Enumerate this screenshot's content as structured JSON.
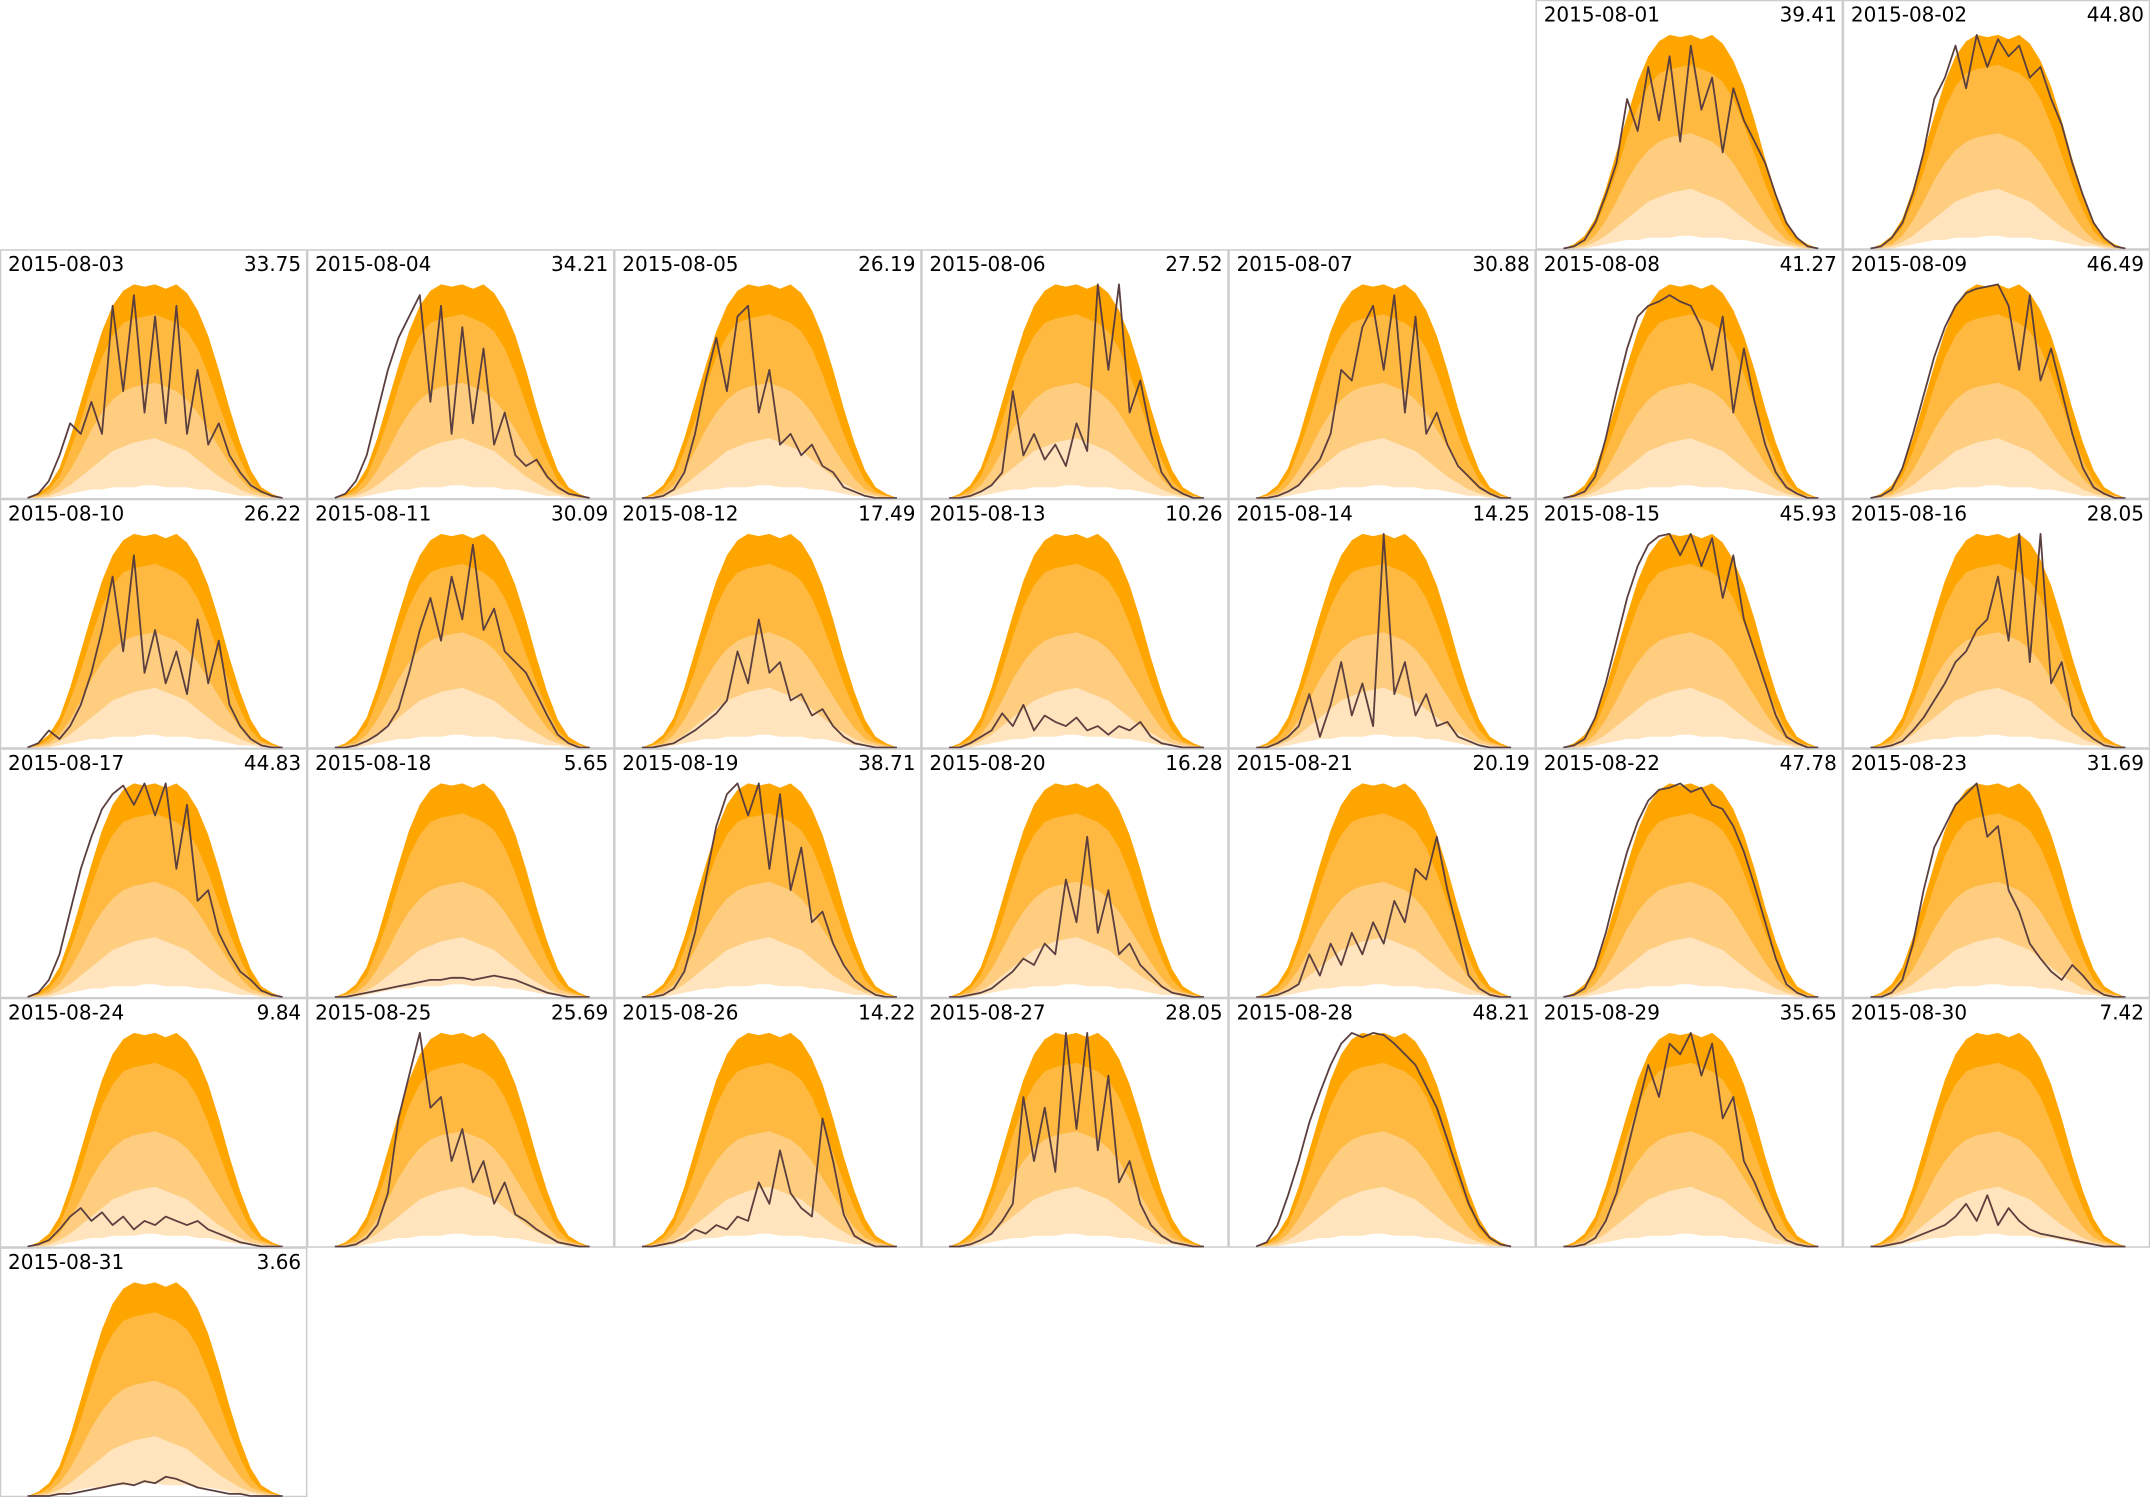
{
  "chart_data": {
    "type": "calendar-area",
    "ylim": [
      0,
      100
    ],
    "line_color": "#5b3f3f",
    "bands": [
      {
        "color": "#ffa500",
        "values": [
          0,
          2,
          6,
          14,
          28,
          45,
          62,
          78,
          90,
          97,
          100,
          99,
          100,
          98,
          100,
          96,
          88,
          76,
          60,
          42,
          26,
          13,
          5,
          2,
          0
        ]
      },
      {
        "color": "#ffb940",
        "values": [
          0,
          1,
          4,
          10,
          22,
          36,
          52,
          66,
          76,
          82,
          84,
          85,
          86,
          84,
          82,
          78,
          70,
          58,
          44,
          30,
          18,
          8,
          3,
          1,
          0
        ]
      },
      {
        "color": "#ffcd80",
        "values": [
          0,
          1,
          2,
          6,
          13,
          22,
          32,
          40,
          46,
          50,
          52,
          53,
          54,
          52,
          50,
          46,
          40,
          32,
          24,
          16,
          9,
          4,
          2,
          1,
          0
        ]
      },
      {
        "color": "#ffe4bd",
        "values": [
          0,
          0,
          1,
          3,
          6,
          10,
          14,
          18,
          22,
          24,
          26,
          27,
          28,
          26,
          24,
          22,
          18,
          14,
          10,
          7,
          4,
          2,
          1,
          0,
          0
        ]
      },
      {
        "color": "#ffffff",
        "values": [
          0,
          0,
          0,
          1,
          2,
          3,
          4,
          4,
          5,
          5,
          5,
          6,
          6,
          5,
          5,
          5,
          4,
          4,
          3,
          2,
          1,
          1,
          0,
          0,
          0
        ]
      }
    ],
    "dates": [
      "2015-08-01",
      "2015-08-02",
      "2015-08-03",
      "2015-08-04",
      "2015-08-05",
      "2015-08-06",
      "2015-08-07",
      "2015-08-08",
      "2015-08-09",
      "2015-08-10",
      "2015-08-11",
      "2015-08-12",
      "2015-08-13",
      "2015-08-14",
      "2015-08-15",
      "2015-08-16",
      "2015-08-17",
      "2015-08-18",
      "2015-08-19",
      "2015-08-20",
      "2015-08-21",
      "2015-08-22",
      "2015-08-23",
      "2015-08-24",
      "2015-08-25",
      "2015-08-26",
      "2015-08-27",
      "2015-08-28",
      "2015-08-29",
      "2015-08-30",
      "2015-08-31"
    ],
    "values": [
      39.41,
      44.8,
      33.75,
      34.21,
      26.19,
      27.52,
      30.88,
      41.27,
      46.49,
      26.22,
      30.09,
      17.49,
      10.26,
      14.25,
      45.93,
      28.05,
      44.83,
      5.65,
      38.71,
      16.28,
      20.19,
      47.78,
      31.69,
      9.84,
      25.69,
      14.22,
      28.05,
      48.21,
      35.65,
      7.42,
      3.66
    ],
    "value_labels": [
      "39.41",
      "44.80",
      "33.75",
      "34.21",
      "26.19",
      "27.52",
      "30.88",
      "41.27",
      "46.49",
      "26.22",
      "30.09",
      "17.49",
      "10.26",
      "14.25",
      "45.93",
      "28.05",
      "44.83",
      "5.65",
      "38.71",
      "16.28",
      "20.19",
      "47.78",
      "31.69",
      "9.84",
      "25.69",
      "14.22",
      "28.05",
      "48.21",
      "35.65",
      "7.42",
      "3.66"
    ],
    "profiles": [
      [
        0,
        1,
        4,
        12,
        25,
        40,
        70,
        55,
        85,
        60,
        90,
        50,
        95,
        65,
        80,
        45,
        75,
        60,
        50,
        40,
        25,
        12,
        5,
        1,
        0
      ],
      [
        0,
        1,
        5,
        12,
        26,
        45,
        70,
        80,
        95,
        75,
        100,
        85,
        98,
        90,
        95,
        80,
        85,
        70,
        58,
        40,
        25,
        12,
        5,
        1,
        0
      ],
      [
        0,
        2,
        8,
        20,
        35,
        30,
        45,
        30,
        90,
        50,
        95,
        40,
        85,
        35,
        90,
        30,
        60,
        25,
        35,
        20,
        12,
        6,
        3,
        1,
        0
      ],
      [
        0,
        2,
        8,
        20,
        40,
        60,
        75,
        85,
        95,
        45,
        90,
        30,
        80,
        35,
        70,
        25,
        40,
        20,
        15,
        18,
        10,
        5,
        2,
        1,
        0
      ],
      [
        0,
        0,
        1,
        4,
        12,
        30,
        55,
        75,
        50,
        85,
        90,
        40,
        60,
        25,
        30,
        20,
        25,
        15,
        12,
        5,
        3,
        1,
        0,
        0,
        0
      ],
      [
        0,
        0,
        1,
        3,
        6,
        12,
        50,
        20,
        30,
        18,
        25,
        15,
        35,
        22,
        100,
        60,
        100,
        40,
        55,
        30,
        12,
        5,
        2,
        0,
        0
      ],
      [
        0,
        0,
        1,
        3,
        6,
        12,
        18,
        30,
        60,
        55,
        80,
        90,
        60,
        95,
        40,
        85,
        30,
        40,
        25,
        15,
        10,
        5,
        2,
        0,
        0
      ],
      [
        0,
        1,
        3,
        10,
        28,
        50,
        70,
        85,
        90,
        92,
        95,
        92,
        90,
        80,
        60,
        85,
        40,
        70,
        45,
        25,
        12,
        5,
        2,
        0,
        0
      ],
      [
        0,
        1,
        4,
        14,
        30,
        48,
        66,
        80,
        90,
        96,
        98,
        99,
        100,
        90,
        60,
        95,
        55,
        70,
        50,
        30,
        14,
        5,
        2,
        0,
        0
      ],
      [
        0,
        2,
        8,
        4,
        10,
        20,
        35,
        55,
        80,
        45,
        90,
        35,
        55,
        30,
        45,
        25,
        60,
        30,
        50,
        20,
        10,
        4,
        1,
        0,
        0
      ],
      [
        0,
        0,
        1,
        3,
        6,
        10,
        18,
        35,
        55,
        70,
        50,
        80,
        60,
        95,
        55,
        65,
        45,
        40,
        35,
        25,
        15,
        6,
        2,
        0,
        0
      ],
      [
        0,
        0,
        1,
        2,
        5,
        8,
        12,
        16,
        22,
        45,
        30,
        60,
        35,
        40,
        22,
        25,
        15,
        18,
        10,
        5,
        2,
        1,
        0,
        0,
        0
      ],
      [
        0,
        0,
        2,
        5,
        8,
        16,
        10,
        20,
        8,
        15,
        12,
        10,
        14,
        8,
        10,
        6,
        10,
        8,
        12,
        5,
        2,
        1,
        0,
        0,
        0
      ],
      [
        0,
        0,
        2,
        5,
        10,
        25,
        5,
        20,
        40,
        15,
        30,
        10,
        100,
        25,
        40,
        15,
        25,
        10,
        12,
        5,
        3,
        1,
        0,
        0,
        0
      ],
      [
        0,
        1,
        4,
        14,
        30,
        50,
        70,
        85,
        95,
        99,
        100,
        90,
        100,
        85,
        98,
        70,
        90,
        60,
        45,
        30,
        15,
        5,
        2,
        0,
        0
      ],
      [
        0,
        0,
        1,
        3,
        8,
        14,
        22,
        30,
        40,
        45,
        55,
        60,
        80,
        50,
        100,
        40,
        100,
        30,
        40,
        15,
        8,
        4,
        1,
        0,
        0
      ],
      [
        0,
        2,
        8,
        20,
        40,
        60,
        75,
        88,
        95,
        99,
        90,
        100,
        85,
        100,
        60,
        90,
        45,
        50,
        30,
        20,
        12,
        8,
        3,
        1,
        0
      ],
      [
        0,
        0,
        1,
        2,
        3,
        4,
        5,
        6,
        7,
        8,
        8,
        9,
        9,
        8,
        9,
        10,
        9,
        8,
        6,
        4,
        2,
        1,
        0,
        0,
        0
      ],
      [
        0,
        0,
        1,
        4,
        12,
        30,
        55,
        80,
        95,
        100,
        85,
        100,
        60,
        95,
        50,
        70,
        35,
        40,
        25,
        15,
        8,
        4,
        1,
        0,
        0
      ],
      [
        0,
        0,
        1,
        2,
        4,
        8,
        12,
        18,
        15,
        25,
        20,
        55,
        35,
        75,
        30,
        50,
        20,
        25,
        15,
        10,
        5,
        2,
        1,
        0,
        0
      ],
      [
        0,
        0,
        1,
        3,
        6,
        20,
        10,
        25,
        15,
        30,
        20,
        35,
        25,
        45,
        35,
        60,
        55,
        75,
        50,
        30,
        10,
        4,
        1,
        0,
        0
      ],
      [
        0,
        1,
        4,
        14,
        30,
        50,
        68,
        82,
        92,
        97,
        98,
        100,
        96,
        98,
        90,
        88,
        80,
        68,
        52,
        35,
        18,
        6,
        2,
        0,
        0
      ],
      [
        0,
        0,
        2,
        8,
        25,
        50,
        70,
        80,
        90,
        95,
        100,
        75,
        80,
        50,
        40,
        25,
        18,
        12,
        8,
        15,
        10,
        4,
        1,
        0,
        0
      ],
      [
        0,
        1,
        3,
        8,
        14,
        18,
        12,
        16,
        10,
        14,
        8,
        12,
        10,
        14,
        12,
        10,
        12,
        8,
        6,
        4,
        2,
        1,
        0,
        0,
        0
      ],
      [
        0,
        0,
        1,
        4,
        10,
        25,
        60,
        80,
        100,
        65,
        70,
        40,
        55,
        30,
        40,
        20,
        30,
        15,
        12,
        8,
        5,
        2,
        1,
        0,
        0
      ],
      [
        0,
        0,
        1,
        2,
        4,
        8,
        6,
        10,
        8,
        14,
        12,
        30,
        20,
        45,
        25,
        18,
        14,
        60,
        40,
        15,
        5,
        2,
        0,
        0,
        0
      ],
      [
        0,
        0,
        1,
        3,
        6,
        12,
        20,
        70,
        40,
        65,
        35,
        100,
        55,
        100,
        45,
        80,
        30,
        40,
        20,
        10,
        5,
        2,
        1,
        0,
        0
      ],
      [
        0,
        2,
        10,
        24,
        40,
        58,
        72,
        85,
        95,
        100,
        98,
        100,
        99,
        95,
        90,
        85,
        75,
        65,
        50,
        35,
        20,
        10,
        4,
        1,
        0
      ],
      [
        0,
        0,
        1,
        4,
        12,
        25,
        45,
        65,
        85,
        70,
        95,
        90,
        100,
        80,
        95,
        60,
        70,
        40,
        30,
        18,
        8,
        3,
        1,
        0,
        0
      ],
      [
        0,
        0,
        1,
        2,
        4,
        6,
        8,
        10,
        14,
        20,
        12,
        24,
        10,
        18,
        12,
        8,
        6,
        5,
        4,
        3,
        2,
        1,
        0,
        0,
        0
      ],
      [
        0,
        0,
        0,
        1,
        1,
        2,
        3,
        4,
        5,
        6,
        5,
        7,
        6,
        9,
        8,
        6,
        4,
        3,
        2,
        1,
        1,
        0,
        0,
        0,
        0
      ]
    ]
  }
}
